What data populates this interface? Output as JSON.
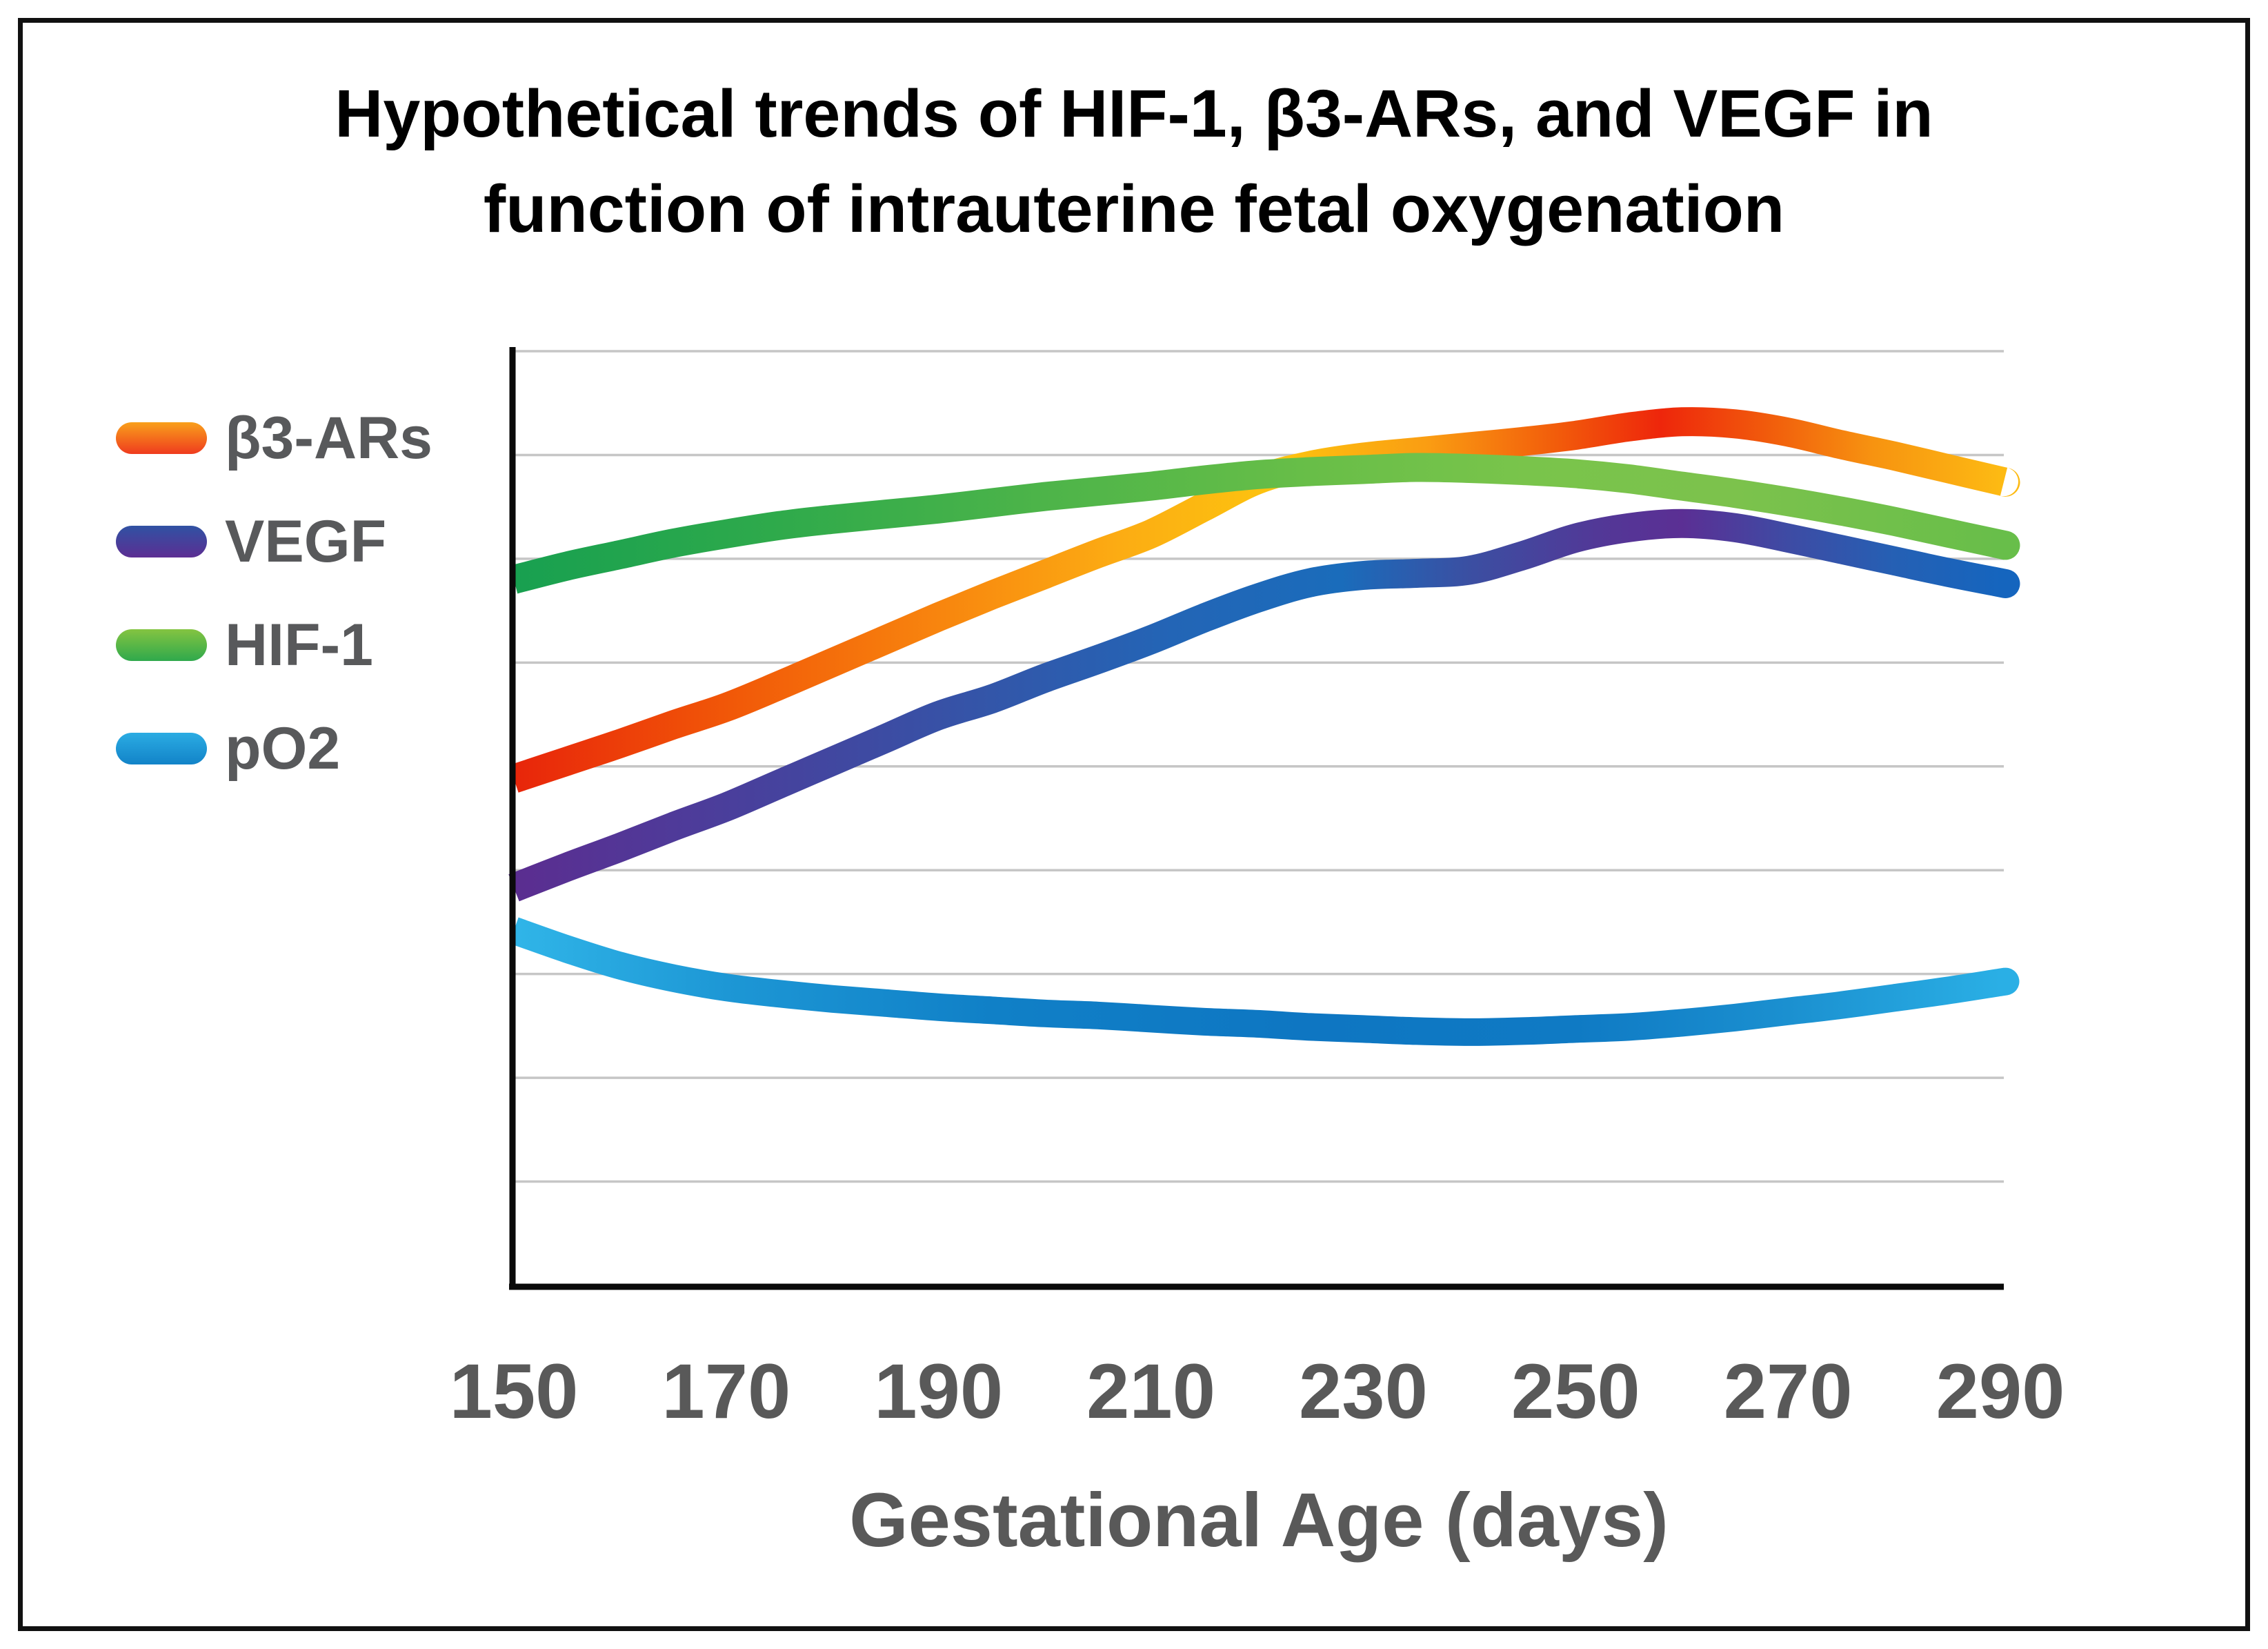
{
  "title": {
    "line1": "Hypothetical trends of HIF-1, β3-ARs, and VEGF in",
    "line2": "function of intrauterine fetal oxygenation"
  },
  "legend": {
    "position": "left",
    "items": [
      {
        "label": "β3-ARs",
        "swatch_top": "#F9A01B",
        "swatch_bottom": "#EF3B1E"
      },
      {
        "label": "VEGF",
        "swatch_top": "#3052A3",
        "swatch_bottom": "#5C2E93"
      },
      {
        "label": "HIF-1",
        "swatch_top": "#84C441",
        "swatch_bottom": "#2FA94C"
      },
      {
        "label": "pO2",
        "swatch_top": "#2BACE3",
        "swatch_bottom": "#1283C8"
      }
    ]
  },
  "x_axis": {
    "label": "Gestational Age (days)",
    "ticks": [
      "150",
      "170",
      "190",
      "210",
      "230",
      "250",
      "270",
      "290"
    ],
    "tick_color": "#595959"
  },
  "colors": {
    "title_text": "#000000",
    "axis_line": "#0A0A0A",
    "gridline": "#C6C6C6",
    "legend_text": "#58595B",
    "frame_border": "#111111",
    "background": "#FFFFFF"
  },
  "chart_data": {
    "type": "line",
    "title": "Hypothetical trends of HIF-1, β3-ARs, and VEGF in function of intrauterine fetal oxygenation",
    "xlabel": "Gestational Age (days)",
    "ylabel": "",
    "x_range": [
      150,
      290
    ],
    "y_axis": {
      "labels_visible": false,
      "scale": "relative level (no units shown)",
      "range": [
        0,
        9
      ],
      "gridlines": 9,
      "grid": "horizontal only"
    },
    "legend_position": "left",
    "x": [
      150,
      155,
      160,
      165,
      170,
      175,
      180,
      185,
      190,
      195,
      200,
      205,
      210,
      215,
      220,
      225,
      230,
      235,
      240,
      245,
      250,
      255,
      260,
      265,
      270,
      275,
      280,
      285,
      290
    ],
    "series": [
      {
        "name": "β3-ARs",
        "shape": "rises from low at 150 to peak near day 260 then declines",
        "values": [
          4.88,
          5.05,
          5.22,
          5.4,
          5.57,
          5.78,
          6.0,
          6.22,
          6.44,
          6.65,
          6.85,
          7.05,
          7.24,
          7.5,
          7.76,
          7.9,
          7.98,
          8.03,
          8.08,
          8.13,
          8.19,
          8.27,
          8.32,
          8.3,
          8.22,
          8.1,
          7.99,
          7.87,
          7.75
        ],
        "gradient": [
          [
            150,
            "#E8250A"
          ],
          [
            170,
            "#F15708"
          ],
          [
            190,
            "#F8850E"
          ],
          [
            207,
            "#FCAC13"
          ],
          [
            222,
            "#FDC40F"
          ],
          [
            236,
            "#FA9D12"
          ],
          [
            248,
            "#F25D0B"
          ],
          [
            258,
            "#EE260B"
          ],
          [
            268,
            "#F15B0C"
          ],
          [
            278,
            "#F79310"
          ],
          [
            290,
            "#FDBA13"
          ]
        ]
      },
      {
        "name": "VEGF",
        "shape": "rises steadily, small plateau near days 230-240, peak near day 260, slight decline",
        "values": [
          3.83,
          4.03,
          4.22,
          4.42,
          4.61,
          4.83,
          5.05,
          5.27,
          5.49,
          5.65,
          5.85,
          6.03,
          6.22,
          6.43,
          6.62,
          6.77,
          6.84,
          6.86,
          6.89,
          7.03,
          7.2,
          7.3,
          7.34,
          7.3,
          7.2,
          7.09,
          6.98,
          6.87,
          6.77
        ],
        "gradient": [
          [
            150,
            "#5B2D90"
          ],
          [
            165,
            "#4F3A99"
          ],
          [
            180,
            "#4147A0"
          ],
          [
            195,
            "#3356A9"
          ],
          [
            212,
            "#2365B6"
          ],
          [
            228,
            "#1A6CBB"
          ],
          [
            240,
            "#3B4FA2"
          ],
          [
            252,
            "#523897"
          ],
          [
            260,
            "#5B2F94"
          ],
          [
            270,
            "#3E4BA4"
          ],
          [
            280,
            "#2560B4"
          ],
          [
            290,
            "#1565BE"
          ]
        ]
      },
      {
        "name": "HIF-1",
        "shape": "high and gently rising, broad maximum near day 235, gentle decline to 290",
        "values": [
          6.8,
          6.93,
          7.04,
          7.15,
          7.24,
          7.32,
          7.38,
          7.43,
          7.48,
          7.54,
          7.6,
          7.65,
          7.7,
          7.76,
          7.81,
          7.84,
          7.86,
          7.88,
          7.87,
          7.85,
          7.82,
          7.77,
          7.7,
          7.63,
          7.55,
          7.46,
          7.36,
          7.25,
          7.14
        ],
        "gradient": [
          [
            150,
            "#18A050"
          ],
          [
            175,
            "#2FAA4B"
          ],
          [
            200,
            "#4DB449"
          ],
          [
            225,
            "#68BE48"
          ],
          [
            245,
            "#79C44B"
          ],
          [
            265,
            "#7CC24C"
          ],
          [
            290,
            "#68BE4A"
          ]
        ]
      },
      {
        "name": "pO2",
        "shape": "declines from 150, shallow trough near days 235-250, rises again toward 290",
        "values": [
          3.42,
          3.24,
          3.08,
          2.96,
          2.87,
          2.81,
          2.76,
          2.72,
          2.68,
          2.65,
          2.62,
          2.6,
          2.57,
          2.54,
          2.52,
          2.49,
          2.47,
          2.45,
          2.44,
          2.45,
          2.47,
          2.49,
          2.53,
          2.58,
          2.64,
          2.7,
          2.77,
          2.84,
          2.92
        ],
        "gradient": [
          [
            150,
            "#30B5E8"
          ],
          [
            170,
            "#1D97D5"
          ],
          [
            195,
            "#1080C7"
          ],
          [
            225,
            "#0E76C2"
          ],
          [
            250,
            "#0F7AC4"
          ],
          [
            270,
            "#1B90D0"
          ],
          [
            290,
            "#2AAFE5"
          ]
        ]
      }
    ]
  }
}
